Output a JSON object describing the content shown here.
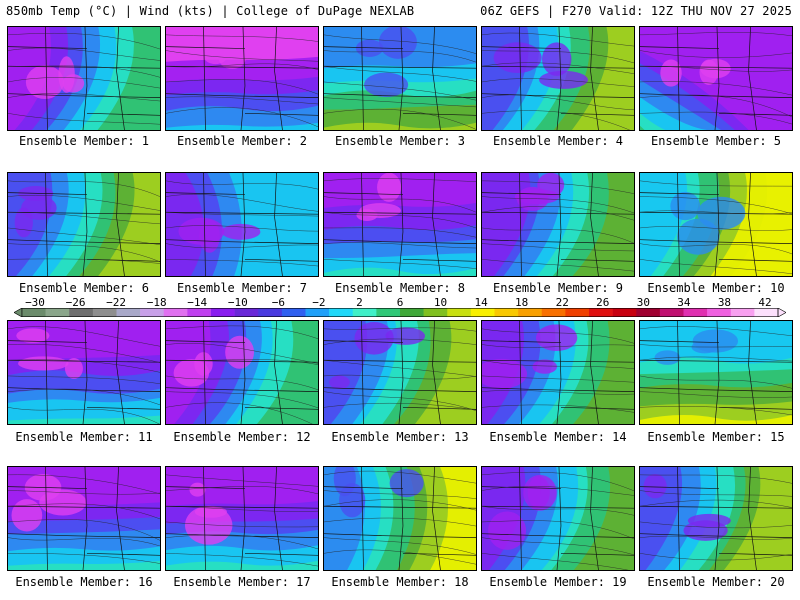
{
  "header": {
    "left": "850mb Temp (°C) | Wind (kts) | College of DuPage NEXLAB",
    "right": "06Z GEFS | F270 Valid: 12Z THU NOV 27 2025"
  },
  "member_label_prefix": "Ensemble Member: ",
  "members": [
    "1",
    "2",
    "3",
    "4",
    "5",
    "6",
    "7",
    "8",
    "9",
    "10",
    "11",
    "12",
    "13",
    "14",
    "15",
    "16",
    "17",
    "18",
    "19",
    "20"
  ],
  "members_meta": [
    {
      "base": 3,
      "warm_quadrant": "bottom-right"
    },
    {
      "base": 2,
      "warm_quadrant": "bottom"
    },
    {
      "base": 6,
      "warm_quadrant": "bottom"
    },
    {
      "base": 5,
      "warm_quadrant": "bottom-right"
    },
    {
      "base": 3,
      "warm_quadrant": "bottom-left"
    },
    {
      "base": 5,
      "warm_quadrant": "bottom-right"
    },
    {
      "base": 4,
      "warm_quadrant": "none"
    },
    {
      "base": 3,
      "warm_quadrant": "bottom"
    },
    {
      "base": 4,
      "warm_quadrant": "bottom-right"
    },
    {
      "base": 7,
      "warm_quadrant": "bottom-right"
    },
    {
      "base": 3,
      "warm_quadrant": "bottom"
    },
    {
      "base": 3,
      "warm_quadrant": "bottom-right"
    },
    {
      "base": 5,
      "warm_quadrant": "bottom-right"
    },
    {
      "base": 4,
      "warm_quadrant": "bottom-right"
    },
    {
      "base": 7,
      "warm_quadrant": "bottom"
    },
    {
      "base": 3,
      "warm_quadrant": "bottom"
    },
    {
      "base": 3,
      "warm_quadrant": "bottom"
    },
    {
      "base": 6,
      "warm_quadrant": "right"
    },
    {
      "base": 4,
      "warm_quadrant": "bottom-right"
    },
    {
      "base": 5,
      "warm_quadrant": "bottom-right"
    }
  ],
  "colorbar": {
    "ticks": [
      "-30",
      "-26",
      "-22",
      "-18",
      "-14",
      "-10",
      "-6",
      "-2",
      "2",
      "6",
      "10",
      "14",
      "18",
      "22",
      "26",
      "30",
      "34",
      "38",
      "42"
    ],
    "colors": [
      "#6b8c6b",
      "#8aa68a",
      "#6f6f6f",
      "#8e8e8e",
      "#a8a8c8",
      "#c8a0e8",
      "#e070f0",
      "#c040f0",
      "#8a1ef0",
      "#6a28d8",
      "#4a3ae0",
      "#3060f0",
      "#20a0f8",
      "#20d8f8",
      "#40f0c8",
      "#30c878",
      "#40a838",
      "#80c020",
      "#c8e010",
      "#f8f000",
      "#f8c800",
      "#f8a000",
      "#f87000",
      "#f04000",
      "#e01010",
      "#c80010",
      "#a00030",
      "#c01070",
      "#e030b0",
      "#f060e0",
      "#f8a0f0",
      "#fce0fc"
    ]
  }
}
